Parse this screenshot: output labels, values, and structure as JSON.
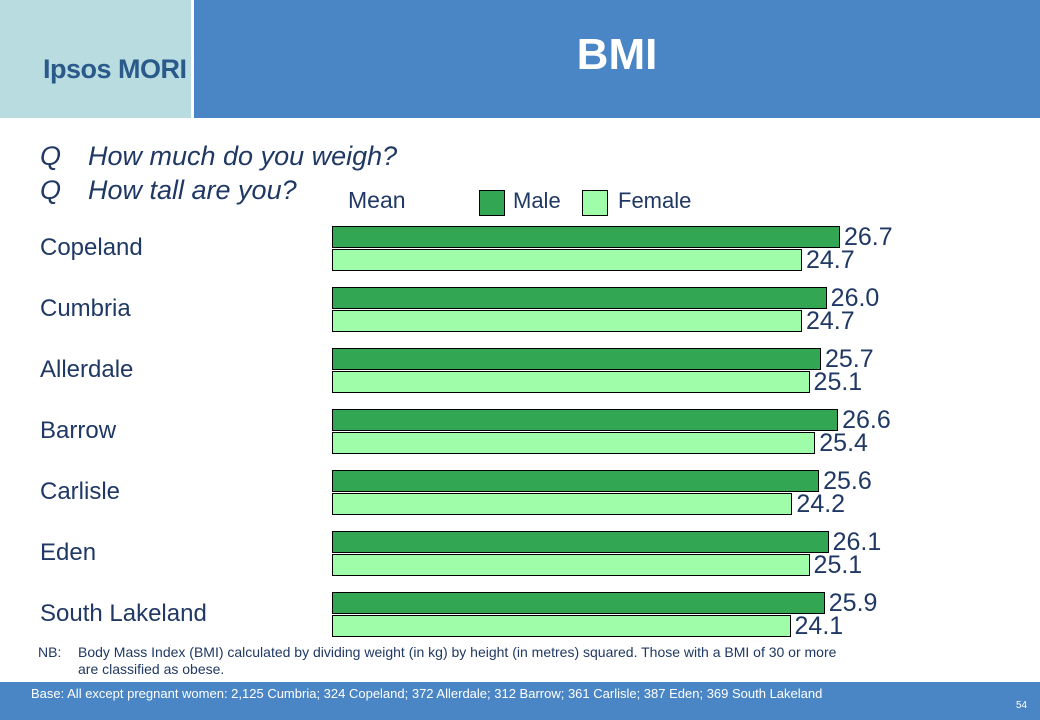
{
  "header": {
    "logo": "Ipsos MORI",
    "title": "BMI"
  },
  "questions": [
    {
      "label": "Q",
      "text": "How much do you weigh?"
    },
    {
      "label": "Q",
      "text": "How tall are you?"
    }
  ],
  "chart_data": {
    "type": "bar",
    "orientation": "horizontal",
    "subtitle": "Mean",
    "categories": [
      "Copeland",
      "Cumbria",
      "Allerdale",
      "Barrow",
      "Carlisle",
      "Eden",
      "South Lakeland"
    ],
    "series": [
      {
        "name": "Male",
        "color": "#33a653",
        "values": [
          26.7,
          26.0,
          25.7,
          26.6,
          25.6,
          26.1,
          25.9
        ],
        "labels": [
          "26.7",
          "26.0",
          "25.7",
          "26.6",
          "25.6",
          "26.1",
          "25.9"
        ]
      },
      {
        "name": "Female",
        "color": "#9ffca9",
        "values": [
          24.7,
          24.7,
          25.1,
          25.4,
          24.2,
          25.1,
          24.1
        ],
        "labels": [
          "24.7",
          "24.7",
          "25.1",
          "25.4",
          "24.2",
          "25.1",
          "24.1"
        ]
      }
    ],
    "legend_position": "top",
    "grid": false
  },
  "notes": {
    "label": "NB:",
    "text": "Body Mass Index (BMI) calculated by dividing weight (in kg) by height (in metres) squared. Those with a BMI of 30 or more are classified as obese."
  },
  "footer": {
    "base": "Base: All except pregnant women: 2,125 Cumbria; 324 Copeland; 372 Allerdale; 312 Barrow; 361 Carlisle; 387 Eden; 369 South Lakeland",
    "page_number": "54"
  }
}
